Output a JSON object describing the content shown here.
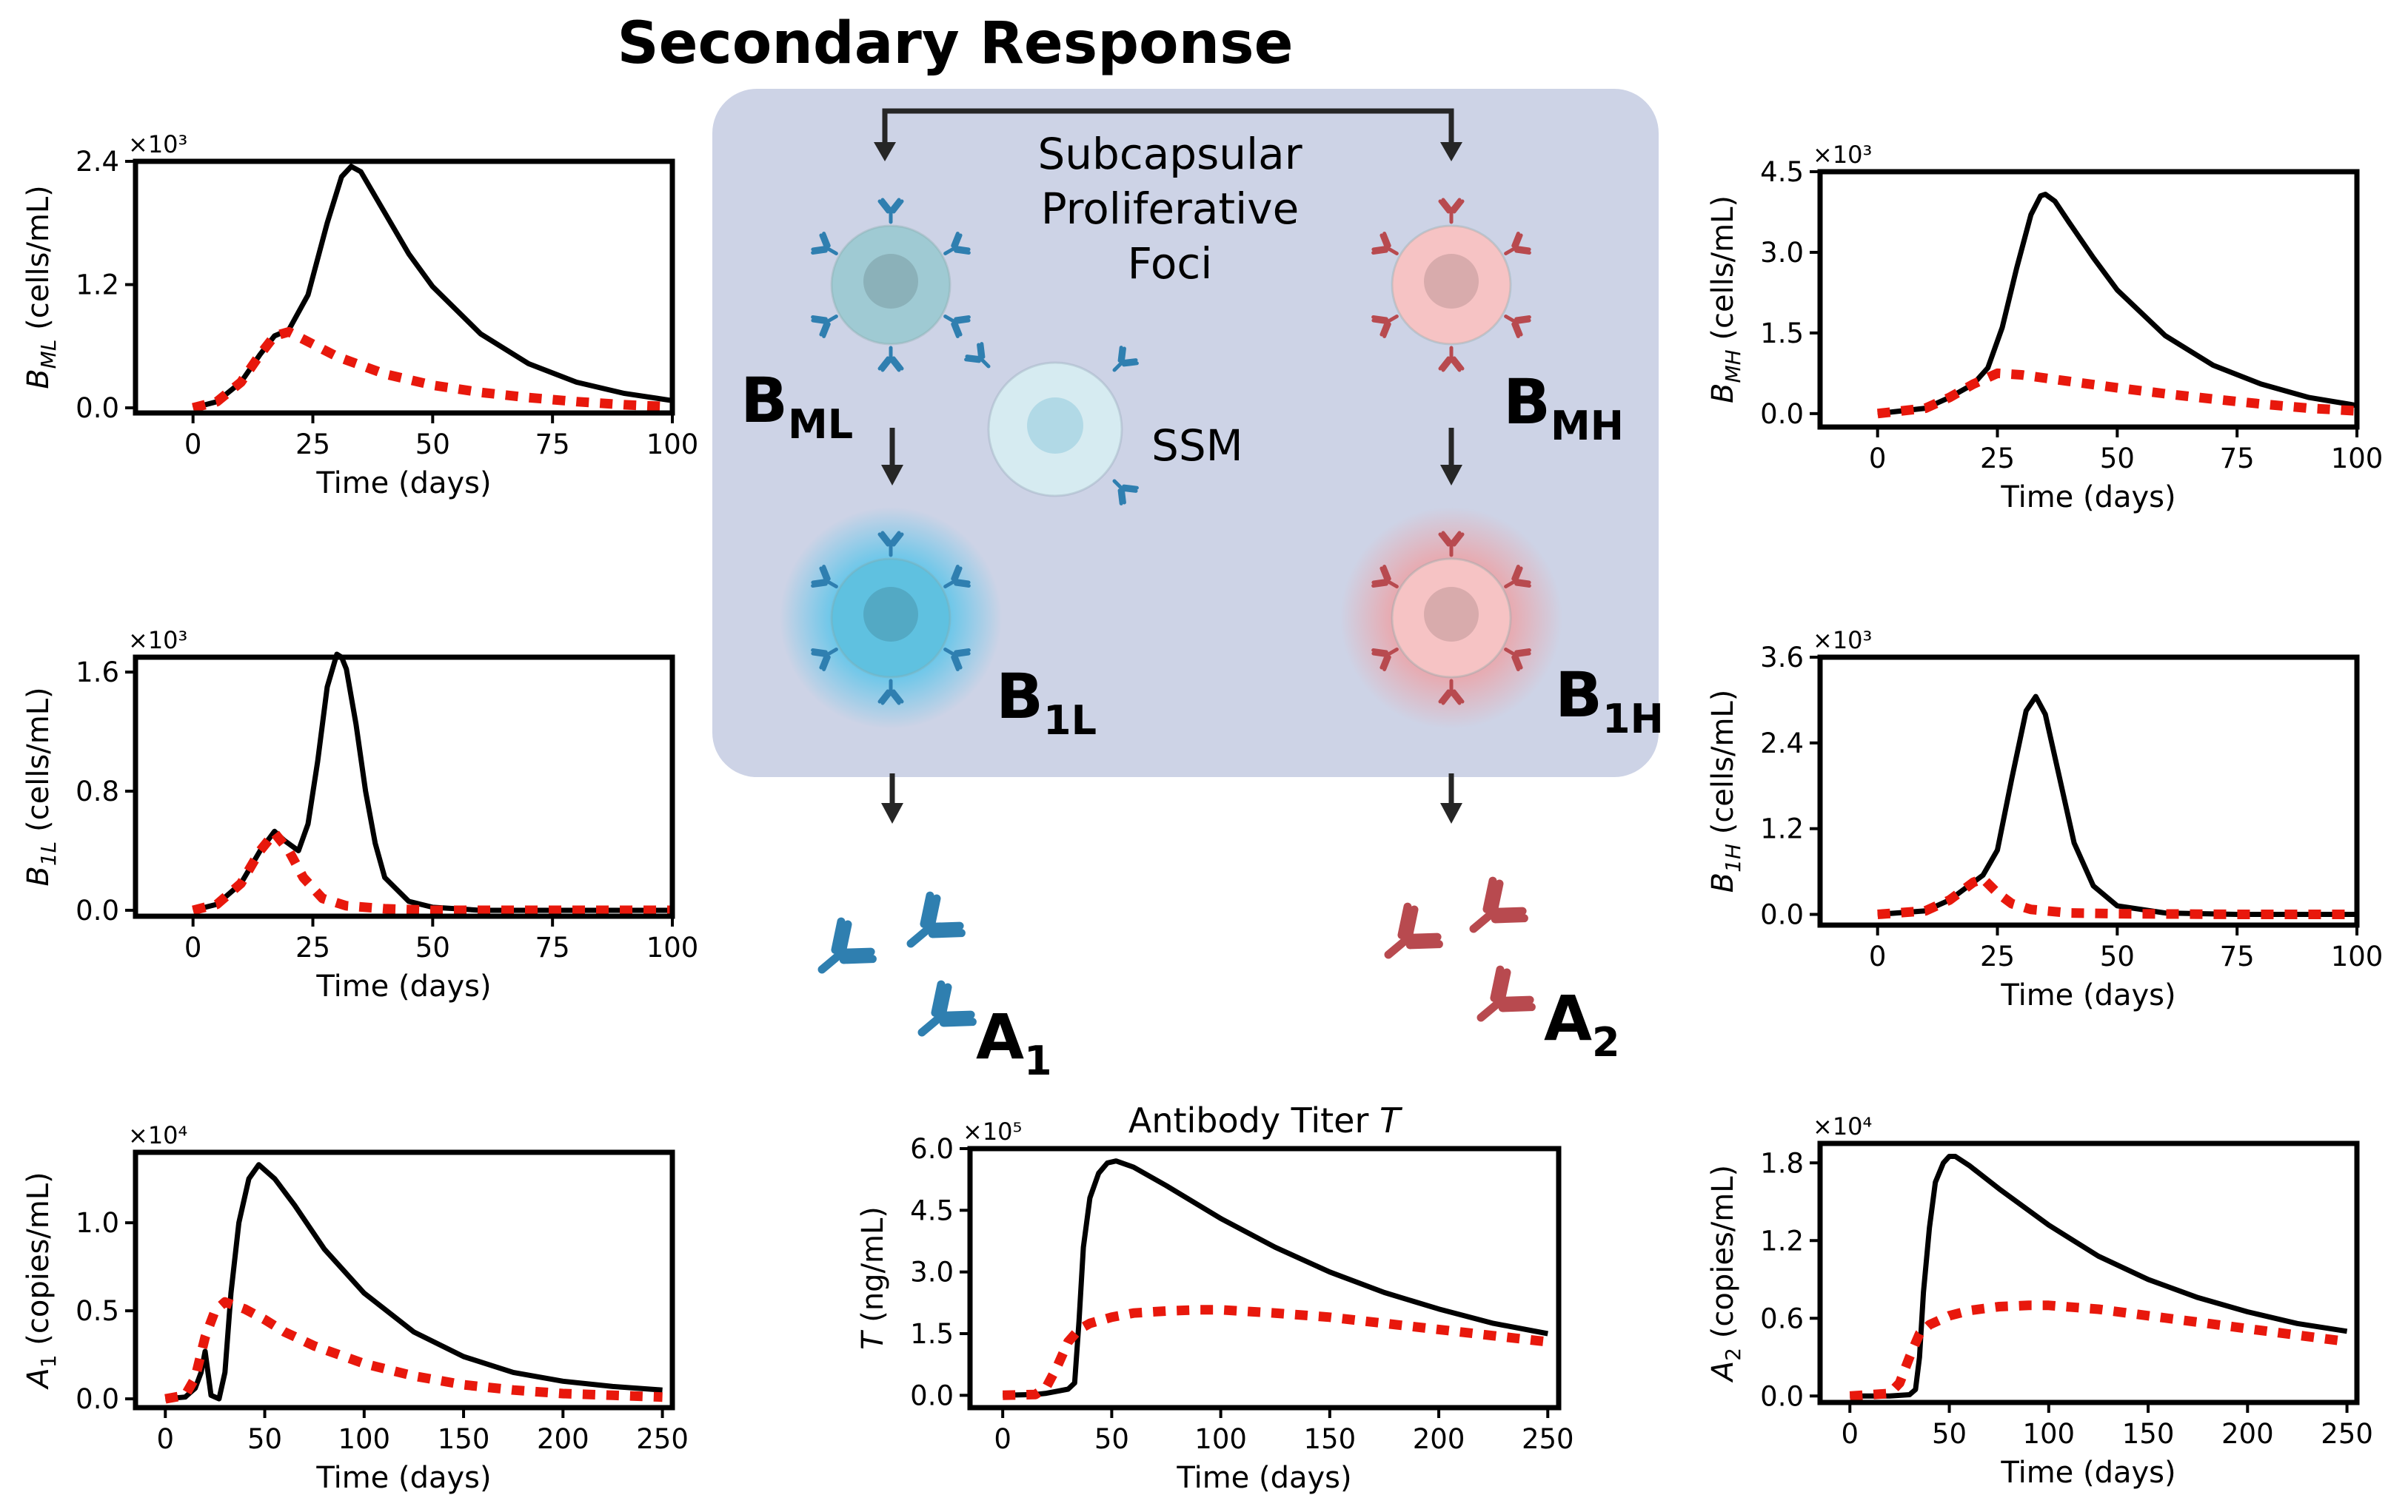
{
  "figure_title": "Secondary Response",
  "diagram": {
    "region_label_lines": [
      "Subcapsular",
      "Proliferative",
      "Foci"
    ],
    "cells": {
      "bml": {
        "main": "B",
        "sub": "ML"
      },
      "bmh": {
        "main": "B",
        "sub": "MH"
      },
      "b1l": {
        "main": "B",
        "sub": "1L"
      },
      "b1h": {
        "main": "B",
        "sub": "1H"
      },
      "ssm": "SSM"
    },
    "antibodies": {
      "a1": {
        "main": "A",
        "sub": "1"
      },
      "a2": {
        "main": "A",
        "sub": "2"
      }
    },
    "colors": {
      "region": "#cdd3e6",
      "low_cell": "#9fcad3",
      "low_antibody": "#2f7fb0",
      "high_cell": "#f6c3c4",
      "high_antibody": "#b84a4f",
      "ssm_cell": "#d6ebf1",
      "arrow": "#262626"
    }
  },
  "chart_data": [
    {
      "id": "bml",
      "type": "line",
      "ylabel_var": "B",
      "ylabel_sub": "ML",
      "ylabel_units": "(cells/mL)",
      "xlabel": "Time (days)",
      "multiplier": "×10³",
      "xlim": [
        -12,
        100
      ],
      "ylim": [
        -0.05,
        2.4
      ],
      "xticks": [
        0,
        25,
        50,
        75,
        100
      ],
      "yticks": [
        0.0,
        1.2,
        2.4
      ],
      "ytick_labels": [
        "0.0",
        "1.2",
        "2.4"
      ],
      "series": [
        {
          "name": "solid",
          "style": "solid",
          "color": "#000000",
          "x": [
            0,
            5,
            10,
            14,
            17,
            20,
            24,
            28,
            31,
            33,
            35,
            40,
            45,
            50,
            60,
            70,
            80,
            90,
            100
          ],
          "y": [
            0,
            0.06,
            0.25,
            0.52,
            0.7,
            0.76,
            1.1,
            1.8,
            2.25,
            2.35,
            2.3,
            1.9,
            1.5,
            1.18,
            0.72,
            0.43,
            0.25,
            0.14,
            0.07
          ]
        },
        {
          "name": "dotted",
          "style": "dotted",
          "color": "#e8180c",
          "x": [
            0,
            5,
            10,
            14,
            17,
            20,
            25,
            30,
            40,
            50,
            60,
            70,
            80,
            90,
            100
          ],
          "y": [
            0,
            0.06,
            0.25,
            0.52,
            0.7,
            0.74,
            0.62,
            0.5,
            0.33,
            0.22,
            0.15,
            0.1,
            0.06,
            0.03,
            0.01
          ]
        }
      ]
    },
    {
      "id": "b1l",
      "type": "line",
      "ylabel_var": "B",
      "ylabel_sub": "1L",
      "ylabel_units": "(cells/mL)",
      "xlabel": "Time (days)",
      "multiplier": "×10³",
      "xlim": [
        -12,
        100
      ],
      "ylim": [
        -0.04,
        1.7
      ],
      "xticks": [
        0,
        25,
        50,
        75,
        100
      ],
      "yticks": [
        0.0,
        0.8,
        1.6
      ],
      "ytick_labels": [
        "0.0",
        "0.8",
        "1.6"
      ],
      "series": [
        {
          "name": "solid",
          "style": "solid",
          "color": "#000000",
          "x": [
            0,
            5,
            10,
            14,
            17,
            19,
            22,
            24,
            26,
            28,
            30,
            31,
            32,
            34,
            36,
            38,
            40,
            45,
            50,
            60,
            75,
            100
          ],
          "y": [
            0,
            0.04,
            0.18,
            0.4,
            0.53,
            0.47,
            0.4,
            0.58,
            1.0,
            1.5,
            1.72,
            1.7,
            1.62,
            1.25,
            0.8,
            0.45,
            0.22,
            0.06,
            0.02,
            0.0,
            0.0,
            0.0
          ]
        },
        {
          "name": "dotted",
          "style": "dotted",
          "color": "#e8180c",
          "x": [
            0,
            5,
            10,
            14,
            17,
            20,
            23,
            27,
            32,
            40,
            50,
            75,
            100
          ],
          "y": [
            0,
            0.04,
            0.18,
            0.4,
            0.52,
            0.4,
            0.22,
            0.08,
            0.03,
            0.01,
            0.0,
            0.0,
            0.0
          ]
        }
      ]
    },
    {
      "id": "a1",
      "type": "line",
      "ylabel_var": "A",
      "ylabel_sub": "1",
      "ylabel_units": "(copies/mL)",
      "xlabel": "Time (days)",
      "multiplier": "×10⁴",
      "xlim": [
        -15,
        255
      ],
      "ylim": [
        -0.05,
        1.4
      ],
      "xticks": [
        0,
        50,
        100,
        150,
        200,
        250
      ],
      "yticks": [
        0.0,
        0.5,
        1.0
      ],
      "ytick_labels": [
        "0.0",
        "0.5",
        "1.0"
      ],
      "series": [
        {
          "name": "solid",
          "style": "solid",
          "color": "#000000",
          "x": [
            0,
            10,
            15,
            18,
            20,
            23,
            27,
            30,
            33,
            37,
            42,
            47,
            55,
            65,
            80,
            100,
            125,
            150,
            175,
            200,
            225,
            250
          ],
          "y": [
            0,
            0.01,
            0.06,
            0.15,
            0.27,
            0.02,
            0.0,
            0.15,
            0.6,
            1.0,
            1.25,
            1.33,
            1.25,
            1.1,
            0.85,
            0.6,
            0.38,
            0.24,
            0.15,
            0.1,
            0.07,
            0.05
          ]
        },
        {
          "name": "dotted",
          "style": "dotted",
          "color": "#e8180c",
          "x": [
            0,
            10,
            15,
            20,
            25,
            30,
            40,
            50,
            60,
            75,
            100,
            125,
            150,
            175,
            200,
            225,
            250
          ],
          "y": [
            0,
            0.02,
            0.12,
            0.35,
            0.5,
            0.55,
            0.51,
            0.45,
            0.38,
            0.3,
            0.2,
            0.13,
            0.08,
            0.05,
            0.03,
            0.02,
            0.01
          ]
        }
      ]
    },
    {
      "id": "titer",
      "type": "line",
      "title": "Antibody Titer ",
      "title_var": "T",
      "ylabel_var": "T",
      "ylabel_sub": "",
      "ylabel_units": "(ng/mL)",
      "xlabel": "Time (days)",
      "multiplier": "×10⁵",
      "xlim": [
        -15,
        255
      ],
      "ylim": [
        -0.3,
        6.0
      ],
      "xticks": [
        0,
        50,
        100,
        150,
        200,
        250
      ],
      "yticks": [
        0.0,
        1.5,
        3.0,
        4.5,
        6.0
      ],
      "ytick_labels": [
        "0.0",
        "1.5",
        "3.0",
        "4.5",
        "6.0"
      ],
      "series": [
        {
          "name": "solid",
          "style": "solid",
          "color": "#000000",
          "x": [
            0,
            15,
            20,
            25,
            30,
            33,
            35,
            37,
            40,
            44,
            48,
            52,
            60,
            75,
            100,
            125,
            150,
            175,
            200,
            225,
            250
          ],
          "y": [
            0,
            0.02,
            0.05,
            0.1,
            0.15,
            0.3,
            1.8,
            3.6,
            4.8,
            5.4,
            5.65,
            5.7,
            5.55,
            5.1,
            4.3,
            3.6,
            3.0,
            2.5,
            2.1,
            1.75,
            1.5
          ]
        },
        {
          "name": "dotted",
          "style": "dotted",
          "color": "#e8180c",
          "x": [
            0,
            15,
            20,
            25,
            30,
            35,
            40,
            50,
            60,
            75,
            90,
            100,
            125,
            150,
            175,
            200,
            225,
            250
          ],
          "y": [
            0,
            0.02,
            0.2,
            0.7,
            1.3,
            1.6,
            1.75,
            1.9,
            2.0,
            2.05,
            2.08,
            2.08,
            2.0,
            1.9,
            1.75,
            1.6,
            1.45,
            1.3
          ]
        }
      ]
    },
    {
      "id": "bmh",
      "type": "line",
      "ylabel_var": "B",
      "ylabel_sub": "MH",
      "ylabel_units": "(cells/mL)",
      "xlabel": "Time (days)",
      "multiplier": "×10³",
      "xlim": [
        -12,
        100
      ],
      "ylim": [
        -0.25,
        4.5
      ],
      "xticks": [
        0,
        25,
        50,
        75,
        100
      ],
      "yticks": [
        0.0,
        1.5,
        3.0,
        4.5
      ],
      "ytick_labels": [
        "0.0",
        "1.5",
        "3.0",
        "4.5"
      ],
      "series": [
        {
          "name": "solid",
          "style": "solid",
          "color": "#000000",
          "x": [
            0,
            10,
            15,
            20,
            23,
            26,
            29,
            32,
            34,
            35,
            37,
            40,
            45,
            50,
            60,
            70,
            80,
            90,
            100
          ],
          "y": [
            0,
            0.1,
            0.3,
            0.55,
            0.85,
            1.6,
            2.7,
            3.7,
            4.05,
            4.08,
            3.95,
            3.55,
            2.9,
            2.3,
            1.45,
            0.9,
            0.55,
            0.3,
            0.15
          ]
        },
        {
          "name": "dotted",
          "style": "dotted",
          "color": "#e8180c",
          "x": [
            0,
            10,
            15,
            20,
            25,
            30,
            40,
            50,
            60,
            70,
            80,
            90,
            100
          ],
          "y": [
            0,
            0.1,
            0.3,
            0.55,
            0.75,
            0.72,
            0.6,
            0.48,
            0.37,
            0.27,
            0.18,
            0.1,
            0.05
          ]
        }
      ]
    },
    {
      "id": "b1h",
      "type": "line",
      "ylabel_var": "B",
      "ylabel_sub": "1H",
      "ylabel_units": "(cells/mL)",
      "xlabel": "Time (days)",
      "multiplier": "×10³",
      "xlim": [
        -12,
        100
      ],
      "ylim": [
        -0.15,
        3.6
      ],
      "xticks": [
        0,
        25,
        50,
        75,
        100
      ],
      "yticks": [
        0.0,
        1.2,
        2.4,
        3.6
      ],
      "ytick_labels": [
        "0.0",
        "1.2",
        "2.4",
        "3.6"
      ],
      "series": [
        {
          "name": "solid",
          "style": "solid",
          "color": "#000000",
          "x": [
            0,
            10,
            15,
            20,
            22,
            25,
            28,
            31,
            33,
            35,
            38,
            41,
            45,
            50,
            60,
            75,
            100
          ],
          "y": [
            0,
            0.05,
            0.2,
            0.45,
            0.55,
            0.9,
            1.9,
            2.85,
            3.05,
            2.8,
            1.9,
            1.0,
            0.4,
            0.12,
            0.02,
            0.0,
            0.0
          ]
        },
        {
          "name": "dotted",
          "style": "dotted",
          "color": "#e8180c",
          "x": [
            0,
            10,
            15,
            20,
            22,
            25,
            28,
            32,
            40,
            50,
            75,
            100
          ],
          "y": [
            0,
            0.05,
            0.2,
            0.45,
            0.5,
            0.3,
            0.15,
            0.07,
            0.02,
            0.01,
            0.0,
            0.0
          ]
        }
      ]
    },
    {
      "id": "a2",
      "type": "line",
      "ylabel_var": "A",
      "ylabel_sub": "2",
      "ylabel_units": "(copies/mL)",
      "xlabel": "Time (days)",
      "multiplier": "×10⁴",
      "xlim": [
        -15,
        255
      ],
      "ylim": [
        -0.05,
        1.95
      ],
      "xticks": [
        0,
        50,
        100,
        150,
        200,
        250
      ],
      "yticks": [
        0.0,
        0.6,
        1.2,
        1.8
      ],
      "ytick_labels": [
        "0.0",
        "0.6",
        "1.2",
        "1.8"
      ],
      "series": [
        {
          "name": "solid",
          "style": "solid",
          "color": "#000000",
          "x": [
            0,
            20,
            30,
            33,
            35,
            37,
            40,
            43,
            47,
            50,
            53,
            60,
            75,
            100,
            125,
            150,
            175,
            200,
            225,
            250
          ],
          "y": [
            0,
            0.0,
            0.01,
            0.05,
            0.3,
            0.8,
            1.3,
            1.65,
            1.8,
            1.85,
            1.85,
            1.78,
            1.6,
            1.32,
            1.08,
            0.9,
            0.76,
            0.65,
            0.56,
            0.5
          ]
        },
        {
          "name": "dotted",
          "style": "dotted",
          "color": "#e8180c",
          "x": [
            0,
            20,
            25,
            30,
            35,
            40,
            50,
            60,
            75,
            90,
            100,
            125,
            150,
            175,
            200,
            225,
            250
          ],
          "y": [
            0,
            0.02,
            0.1,
            0.3,
            0.48,
            0.55,
            0.62,
            0.66,
            0.69,
            0.7,
            0.7,
            0.67,
            0.62,
            0.57,
            0.52,
            0.47,
            0.42
          ]
        }
      ]
    }
  ]
}
